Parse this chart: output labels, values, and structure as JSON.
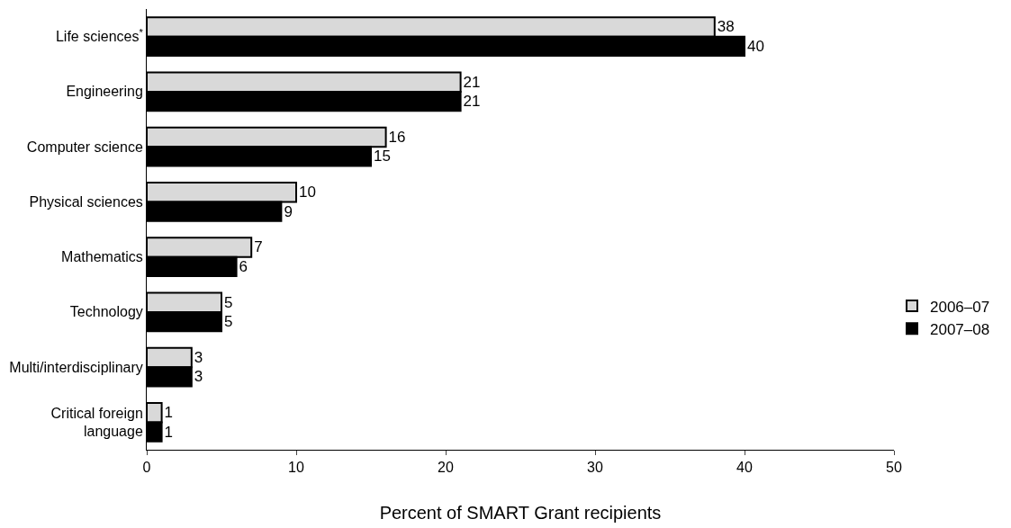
{
  "chart_data": {
    "type": "bar",
    "orientation": "horizontal",
    "xlabel": "Percent of SMART Grant recipients",
    "categories": [
      "Life sciences$^{*}$",
      "Engineering",
      "Computer science",
      "Physical sciences",
      "Mathematics",
      "Technology",
      "Multi/interdisciplinary",
      "Critical foreign\nlanguage"
    ],
    "series": [
      {
        "name": "2006–07",
        "color": "#d9d9d9",
        "values": [
          38,
          21,
          16,
          10,
          7,
          5,
          3,
          1
        ]
      },
      {
        "name": "2007–08",
        "color": "#000000",
        "values": [
          40,
          21,
          15,
          9,
          6,
          5,
          3,
          1
        ]
      }
    ],
    "xlim": [
      0,
      50
    ],
    "xticks": [
      0,
      10,
      20,
      30,
      40,
      50
    ],
    "data_labels": true,
    "legend": "right"
  }
}
